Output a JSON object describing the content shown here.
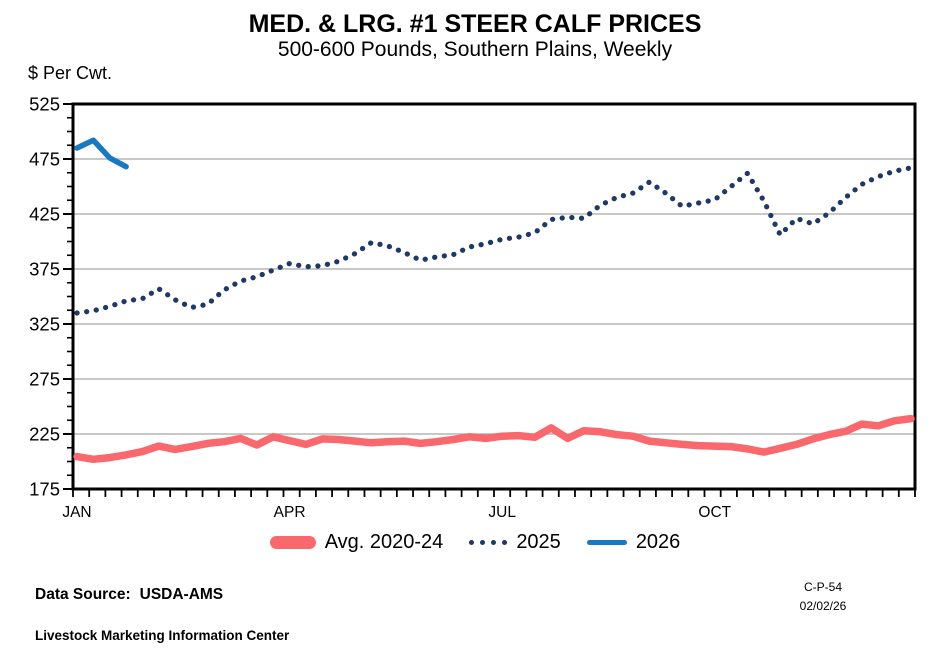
{
  "header": {
    "title": "MED. & LRG. #1 STEER CALF PRICES",
    "subtitle": "500-600 Pounds, Southern Plains, Weekly"
  },
  "footer": {
    "source_label": "Data Source:",
    "source_value": "USDA-AMS",
    "org": "Livestock Marketing Information Center",
    "code": "C-P-54",
    "date": "02/02/26"
  },
  "chart_data": {
    "type": "line",
    "title": "MED. & LRG. #1 STEER CALF PRICES",
    "subtitle": "500-600 Pounds, Southern Plains, Weekly",
    "ylabel": "$ Per Cwt.",
    "x_unit": "week-of-year",
    "weeks": 52,
    "ylim": [
      175,
      525
    ],
    "ytick_interval": 50,
    "y_minor_interval": 12.5,
    "grid": "horizontal",
    "legend_position": "bottom",
    "colors": {
      "grid": "#A8A8A8",
      "axis": "#000000"
    },
    "month_ticks": [
      {
        "label": "JAN",
        "week": 1
      },
      {
        "label": "APR",
        "week": 14
      },
      {
        "label": "JUL",
        "week": 27
      },
      {
        "label": "OCT",
        "week": 40
      }
    ],
    "series": [
      {
        "name": "Avg. 2020-24",
        "style": "solid-thick",
        "color": "#F8686D",
        "values": [
          204.5,
          202,
          203.5,
          206,
          209,
          214,
          211,
          213.5,
          216.5,
          218,
          221,
          215,
          222.5,
          219,
          215.5,
          220.5,
          220,
          218.5,
          217,
          218,
          218.5,
          216.5,
          218,
          220,
          222.5,
          221,
          223,
          223.5,
          222,
          230.5,
          221,
          228,
          227,
          224.5,
          223,
          218.5,
          217,
          215.5,
          214.5,
          214,
          213.5,
          211.5,
          208.5,
          212,
          215.5,
          220.5,
          224.5,
          227.5,
          234,
          232.5,
          237,
          239
        ]
      },
      {
        "name": "2025",
        "style": "dotted",
        "color": "#1F3864",
        "values": [
          335,
          337,
          341,
          346,
          348,
          357,
          347,
          340,
          343,
          356,
          364,
          368,
          374,
          380,
          377,
          378,
          382,
          389,
          399,
          396,
          390,
          383,
          386,
          388,
          395,
          398,
          402,
          404,
          408,
          420,
          422,
          421,
          433,
          440,
          444,
          454,
          444,
          432,
          435,
          438,
          450,
          462,
          437,
          406,
          421,
          416,
          426,
          440,
          452,
          459,
          464,
          467
        ]
      },
      {
        "name": "2026",
        "style": "solid",
        "color": "#1878C2",
        "values": [
          485,
          492,
          476,
          468
        ]
      }
    ]
  }
}
